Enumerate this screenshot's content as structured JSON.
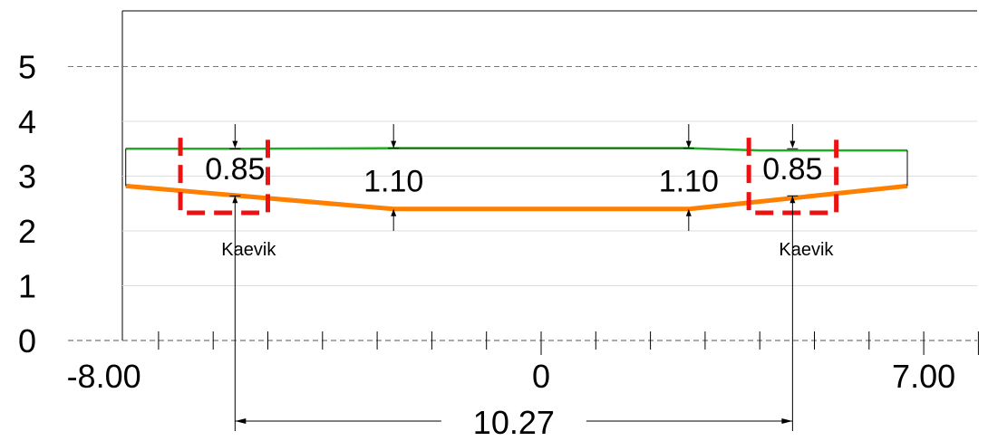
{
  "chart_data": {
    "type": "cross-section",
    "x_ticks": [
      {
        "value": -8,
        "label": "-8.00"
      },
      {
        "value": 0,
        "label": "0"
      },
      {
        "value": 7,
        "label": "7.00"
      }
    ],
    "y_ticks": [
      {
        "value": 0,
        "label": "0"
      },
      {
        "value": 1,
        "label": "1"
      },
      {
        "value": 2,
        "label": "2"
      },
      {
        "value": 3,
        "label": "3"
      },
      {
        "value": 4,
        "label": "4"
      },
      {
        "value": 5,
        "label": "5"
      }
    ],
    "xlim": [
      -9,
      8
    ],
    "ylim": [
      0,
      6
    ],
    "ground_line": {
      "color": "#22aa22",
      "points": [
        [
          -7.6,
          3.5
        ],
        [
          -5.5,
          3.5
        ],
        [
          -2.7,
          3.51
        ],
        [
          2.7,
          3.51
        ],
        [
          4.0,
          3.47
        ],
        [
          5.5,
          3.47
        ],
        [
          6.7,
          3.47
        ]
      ]
    },
    "design_line": {
      "color": "#ff8000",
      "points": [
        [
          -7.6,
          2.82
        ],
        [
          -2.7,
          2.4
        ],
        [
          2.7,
          2.4
        ],
        [
          6.7,
          2.82
        ]
      ]
    },
    "ditches": [
      {
        "x_range": [
          -6.6,
          -5.0
        ],
        "y_range": [
          2.33,
          3.7
        ],
        "depth_label": "0.85",
        "name_label": "Kaevik",
        "axis_x": -5.6
      },
      {
        "x_range": [
          3.8,
          5.4
        ],
        "y_range": [
          2.33,
          3.7
        ],
        "depth_label": "0.85",
        "name_label": "Kaevik",
        "axis_x": 4.6
      }
    ],
    "depth_marks": [
      {
        "x": -2.7,
        "label": "1.10"
      },
      {
        "x": 2.7,
        "label": "1.10"
      }
    ],
    "bottom_dimension": {
      "from": -5.6,
      "to": 4.6,
      "label": "10.27"
    },
    "ditch_color": "#ee1111"
  }
}
